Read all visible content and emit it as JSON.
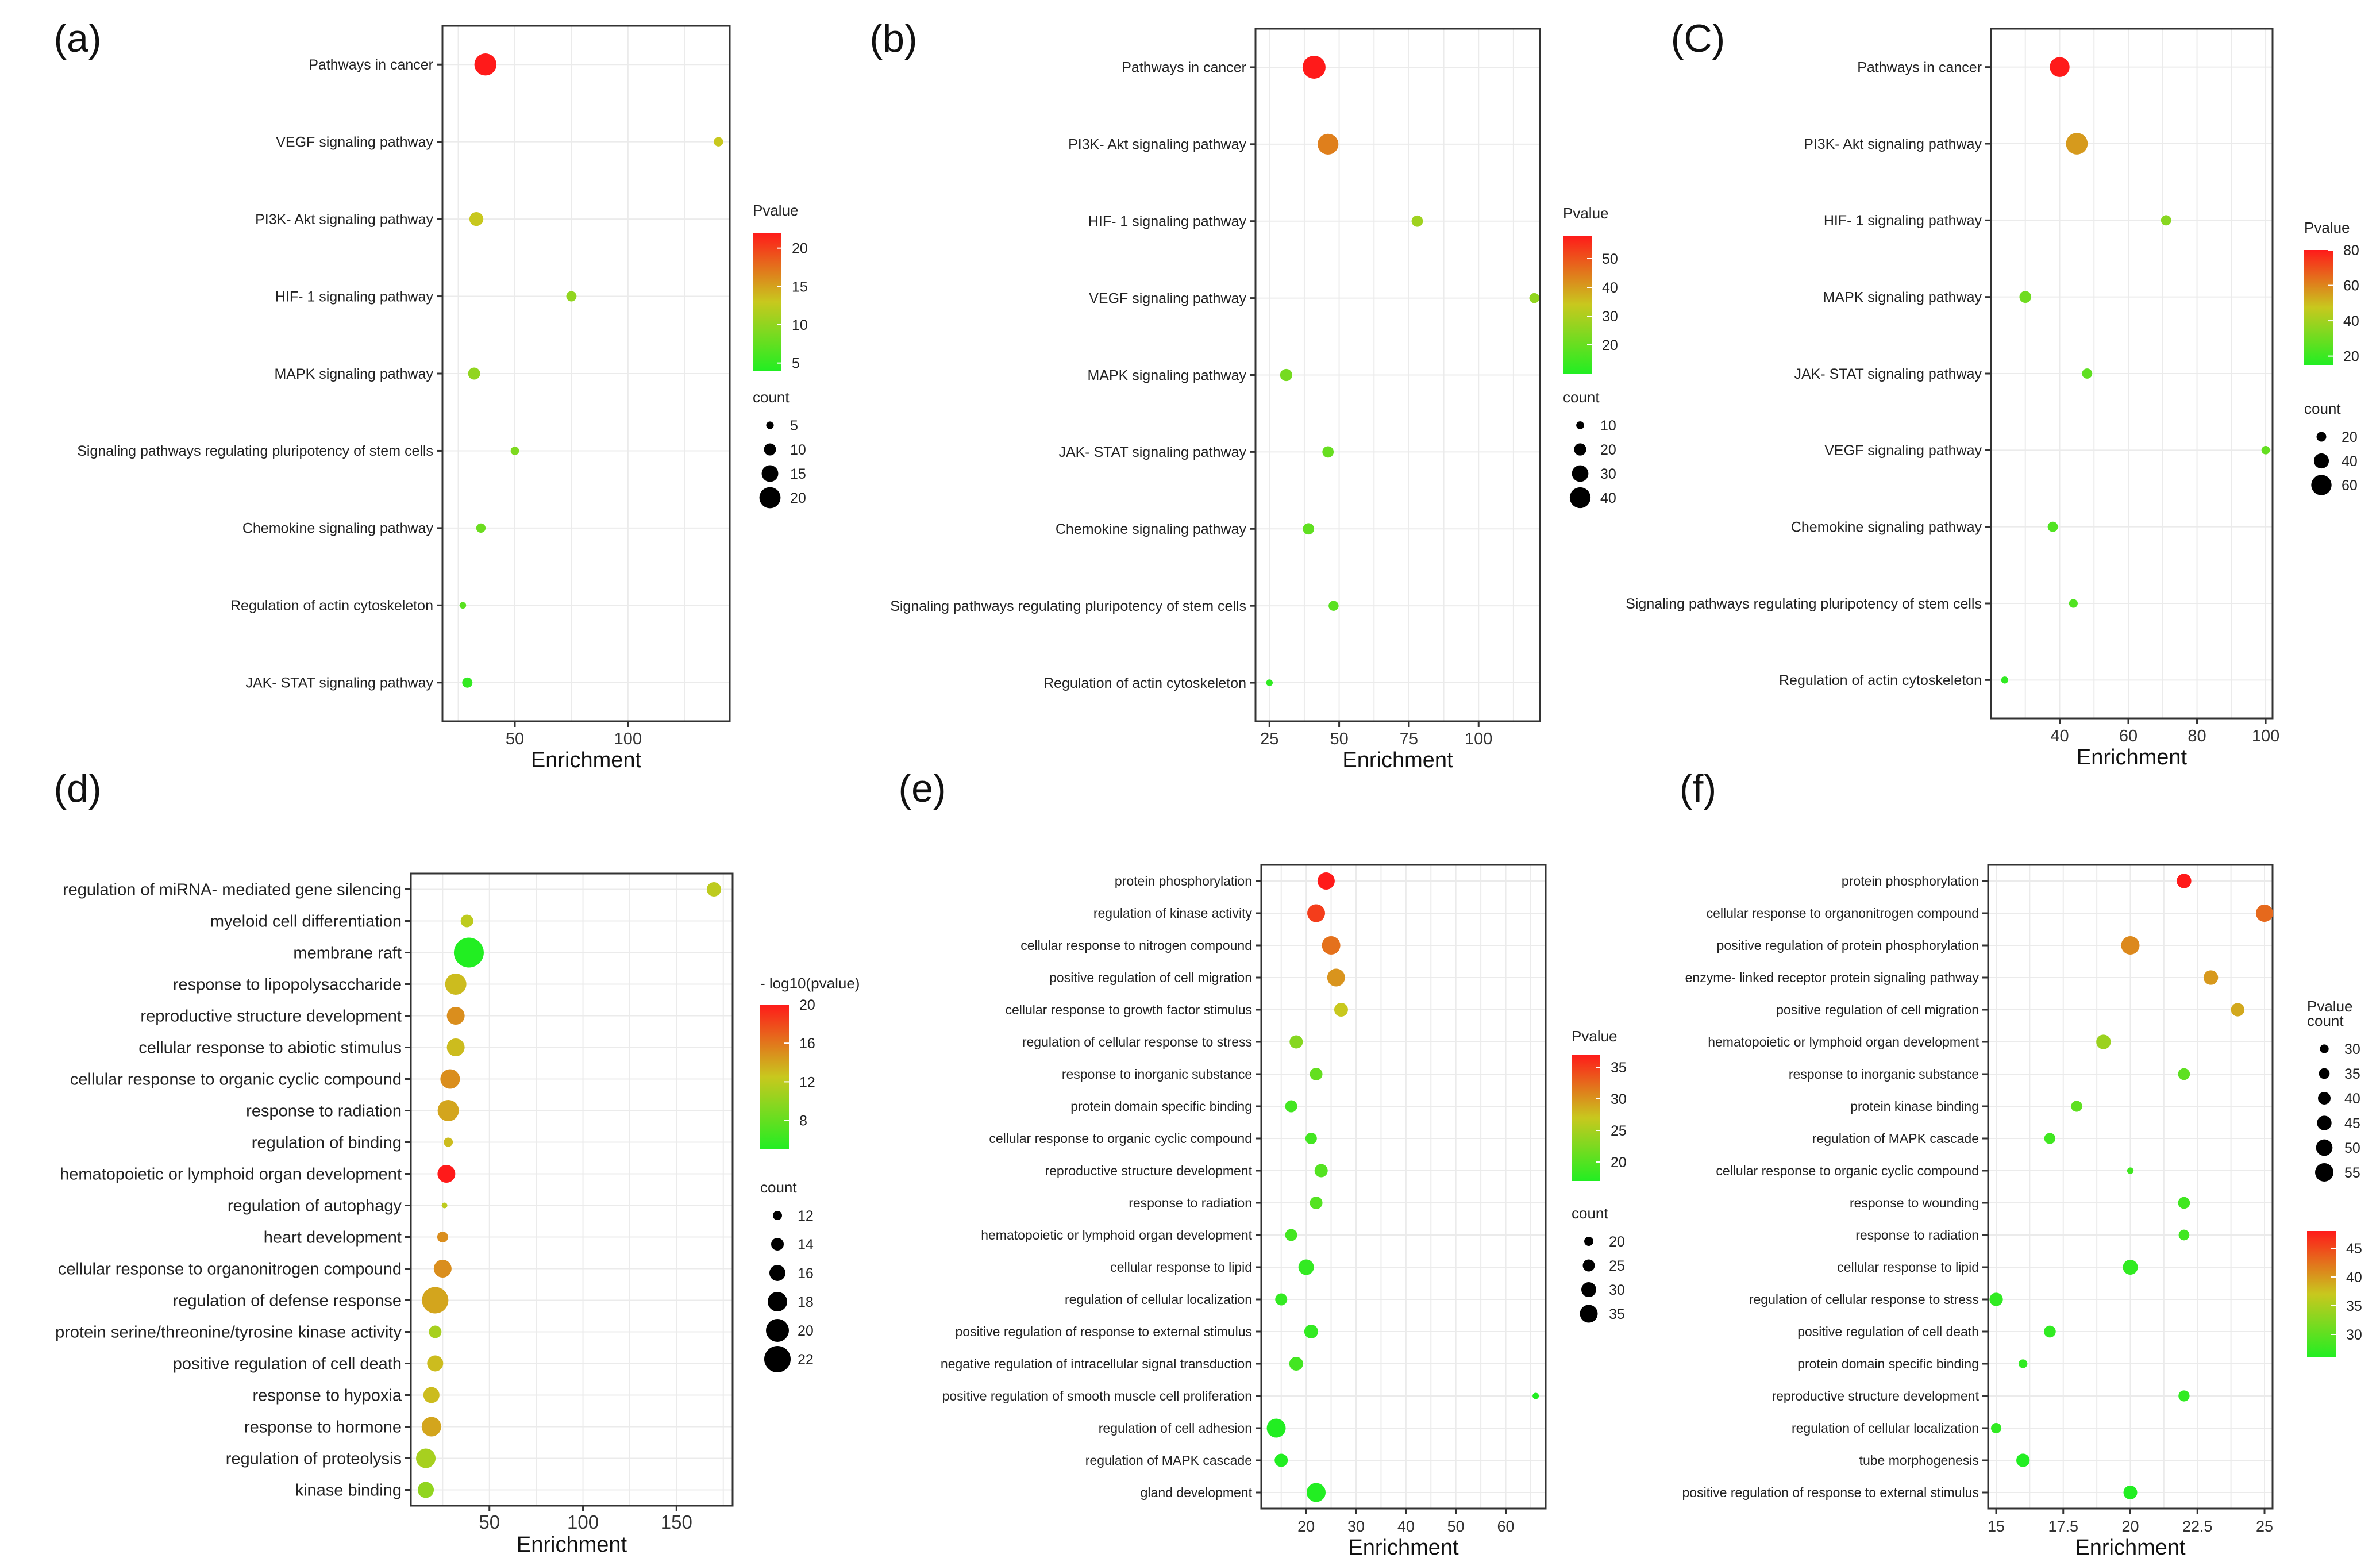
{
  "figure": {
    "color_low": "#22ee22",
    "color_mid": "#c8c81e",
    "color_high": "#ff1a1a",
    "count_label": "count"
  },
  "chart_data": [
    {
      "panel_label": "(a)",
      "type": "scatter",
      "xlabel": "Enrichment",
      "ylabel": "",
      "xlim": [
        18,
        145
      ],
      "xticks": [
        50,
        100
      ],
      "color_legend_title": "Pvalue",
      "color_range": [
        4,
        22
      ],
      "color_ticks": [
        5,
        10,
        15,
        20
      ],
      "size_range": [
        3,
        22
      ],
      "size_ticks": [
        5,
        10,
        15,
        20
      ],
      "points": [
        {
          "term": "Pathways in cancer",
          "x": 37,
          "count": 21,
          "pvalue": 22
        },
        {
          "term": "VEGF signaling pathway",
          "x": 140,
          "count": 7,
          "pvalue": 13
        },
        {
          "term": "PI3K- Akt signaling pathway",
          "x": 33,
          "count": 12,
          "pvalue": 13
        },
        {
          "term": "HIF- 1 signaling pathway",
          "x": 75,
          "count": 8,
          "pvalue": 10
        },
        {
          "term": "MAPK signaling pathway",
          "x": 32,
          "count": 10,
          "pvalue": 10
        },
        {
          "term": "Signaling pathways regulating pluripotency of stem cells",
          "x": 50,
          "count": 6,
          "pvalue": 9
        },
        {
          "term": "Chemokine signaling pathway",
          "x": 35,
          "count": 7,
          "pvalue": 8
        },
        {
          "term": "Regulation of actin cytoskeleton",
          "x": 27,
          "count": 4,
          "pvalue": 7
        },
        {
          "term": "JAK- STAT signaling pathway",
          "x": 29,
          "count": 8,
          "pvalue": 5
        }
      ]
    },
    {
      "panel_label": "(b)",
      "type": "scatter",
      "xlabel": "Enrichment",
      "ylabel": "",
      "xlim": [
        20,
        122
      ],
      "xticks": [
        25,
        50,
        75,
        100
      ],
      "color_legend_title": "Pvalue",
      "color_range": [
        10,
        58
      ],
      "color_ticks": [
        20,
        30,
        40,
        50
      ],
      "size_range": [
        5,
        45
      ],
      "size_ticks": [
        10,
        20,
        30,
        40
      ],
      "points": [
        {
          "term": "Pathways in cancer",
          "x": 41,
          "count": 45,
          "pvalue": 58
        },
        {
          "term": "PI3K- Akt signaling pathway",
          "x": 46,
          "count": 40,
          "pvalue": 44
        },
        {
          "term": "HIF- 1 signaling pathway",
          "x": 78,
          "count": 18,
          "pvalue": 28
        },
        {
          "term": "VEGF signaling pathway",
          "x": 120,
          "count": 15,
          "pvalue": 26
        },
        {
          "term": "MAPK signaling pathway",
          "x": 31,
          "count": 20,
          "pvalue": 22
        },
        {
          "term": "JAK- STAT signaling pathway",
          "x": 46,
          "count": 18,
          "pvalue": 20
        },
        {
          "term": "Chemokine signaling pathway",
          "x": 39,
          "count": 18,
          "pvalue": 19
        },
        {
          "term": "Signaling pathways regulating pluripotency of stem cells",
          "x": 48,
          "count": 15,
          "pvalue": 18
        },
        {
          "term": "Regulation of actin cytoskeleton",
          "x": 25,
          "count": 7,
          "pvalue": 12
        }
      ]
    },
    {
      "panel_label": "(C)",
      "type": "scatter",
      "xlabel": "Enrichment",
      "ylabel": "",
      "xlim": [
        20,
        102
      ],
      "xticks": [
        40,
        60,
        80,
        100
      ],
      "color_legend_title": "Pvalue",
      "color_range": [
        15,
        80
      ],
      "color_ticks": [
        20,
        40,
        60,
        80
      ],
      "size_range": [
        5,
        70
      ],
      "size_ticks": [
        20,
        40,
        60
      ],
      "points": [
        {
          "term": "Pathways in cancer",
          "x": 40,
          "count": 58,
          "pvalue": 80
        },
        {
          "term": "PI3K- Akt signaling pathway",
          "x": 45,
          "count": 65,
          "pvalue": 56
        },
        {
          "term": "HIF- 1 signaling pathway",
          "x": 71,
          "count": 22,
          "pvalue": 35
        },
        {
          "term": "MAPK signaling pathway",
          "x": 30,
          "count": 28,
          "pvalue": 30
        },
        {
          "term": "JAK- STAT signaling pathway",
          "x": 48,
          "count": 22,
          "pvalue": 27
        },
        {
          "term": "VEGF signaling pathway",
          "x": 100,
          "count": 15,
          "pvalue": 28
        },
        {
          "term": "Chemokine signaling pathway",
          "x": 38,
          "count": 22,
          "pvalue": 24
        },
        {
          "term": "Signaling pathways regulating pluripotency of stem cells",
          "x": 44,
          "count": 16,
          "pvalue": 24
        },
        {
          "term": "Regulation of actin cytoskeleton",
          "x": 24,
          "count": 10,
          "pvalue": 18
        }
      ]
    },
    {
      "panel_label": "(d)",
      "type": "scatter",
      "xlabel": "Enrichment",
      "ylabel": "",
      "xlim": [
        8,
        180
      ],
      "xticks": [
        50,
        100,
        150
      ],
      "color_legend_title": "- log10(pvalue)",
      "color_range": [
        5,
        20
      ],
      "color_ticks": [
        8,
        12,
        16,
        20
      ],
      "size_range": [
        10,
        24
      ],
      "size_ticks": [
        12,
        14,
        16,
        18,
        20,
        22
      ],
      "points": [
        {
          "term": "regulation of miRNA- mediated gene silencing",
          "x": 170,
          "count": 15,
          "pvalue": 12
        },
        {
          "term": "myeloid cell differentiation",
          "x": 38,
          "count": 14,
          "pvalue": 12
        },
        {
          "term": "membrane raft",
          "x": 39,
          "count": 24,
          "pvalue": 5
        },
        {
          "term": "response to lipopolysaccharide",
          "x": 32,
          "count": 19,
          "pvalue": 13
        },
        {
          "term": "reproductive structure development",
          "x": 32,
          "count": 17,
          "pvalue": 15
        },
        {
          "term": "cellular response to abiotic stimulus",
          "x": 32,
          "count": 17,
          "pvalue": 13
        },
        {
          "term": "cellular response to organic cyclic compound",
          "x": 29,
          "count": 18,
          "pvalue": 15
        },
        {
          "term": "response to radiation",
          "x": 28,
          "count": 19,
          "pvalue": 14
        },
        {
          "term": "regulation of binding",
          "x": 28,
          "count": 12,
          "pvalue": 13
        },
        {
          "term": "hematopoietic or lymphoid organ development",
          "x": 27,
          "count": 17,
          "pvalue": 20
        },
        {
          "term": "regulation of autophagy",
          "x": 26,
          "count": 10,
          "pvalue": 12
        },
        {
          "term": "heart development",
          "x": 25,
          "count": 13,
          "pvalue": 15
        },
        {
          "term": "cellular response to organonitrogen compound",
          "x": 25,
          "count": 17,
          "pvalue": 15
        },
        {
          "term": "regulation of defense response",
          "x": 21,
          "count": 22,
          "pvalue": 14
        },
        {
          "term": "protein serine/threonine/tyrosine kinase activity",
          "x": 21,
          "count": 14,
          "pvalue": 11
        },
        {
          "term": "positive regulation of cell death",
          "x": 21,
          "count": 16,
          "pvalue": 13
        },
        {
          "term": "response to hypoxia",
          "x": 19,
          "count": 16,
          "pvalue": 13
        },
        {
          "term": "response to hormone",
          "x": 19,
          "count": 18,
          "pvalue": 14
        },
        {
          "term": "regulation of proteolysis",
          "x": 16,
          "count": 18,
          "pvalue": 11
        },
        {
          "term": "kinase binding",
          "x": 16,
          "count": 16,
          "pvalue": 10
        }
      ]
    },
    {
      "panel_label": "(e)",
      "type": "scatter",
      "xlabel": "Enrichment",
      "ylabel": "",
      "xlim": [
        11,
        68
      ],
      "xticks": [
        20,
        30,
        40,
        50,
        60
      ],
      "color_legend_title": "Pvalue",
      "color_range": [
        17,
        37
      ],
      "color_ticks": [
        20,
        25,
        30,
        35
      ],
      "size_range": [
        14,
        38
      ],
      "size_ticks": [
        20,
        25,
        30,
        35
      ],
      "points": [
        {
          "term": "protein phosphorylation",
          "x": 24,
          "count": 34,
          "pvalue": 37
        },
        {
          "term": "regulation of kinase activity",
          "x": 22,
          "count": 35,
          "pvalue": 35
        },
        {
          "term": "cellular response to nitrogen compound",
          "x": 25,
          "count": 36,
          "pvalue": 32
        },
        {
          "term": "positive regulation of cell migration",
          "x": 26,
          "count": 35,
          "pvalue": 30
        },
        {
          "term": "cellular response to growth factor stimulus",
          "x": 27,
          "count": 28,
          "pvalue": 27
        },
        {
          "term": "regulation of cellular response to stress",
          "x": 18,
          "count": 27,
          "pvalue": 23
        },
        {
          "term": "response to inorganic substance",
          "x": 22,
          "count": 26,
          "pvalue": 21
        },
        {
          "term": "protein domain specific binding",
          "x": 17,
          "count": 25,
          "pvalue": 19
        },
        {
          "term": "cellular response to organic cyclic compound",
          "x": 21,
          "count": 24,
          "pvalue": 19
        },
        {
          "term": "reproductive structure development",
          "x": 23,
          "count": 27,
          "pvalue": 20
        },
        {
          "term": "response to radiation",
          "x": 22,
          "count": 26,
          "pvalue": 20
        },
        {
          "term": "hematopoietic or lymphoid organ development",
          "x": 17,
          "count": 25,
          "pvalue": 19
        },
        {
          "term": "cellular response to lipid",
          "x": 20,
          "count": 31,
          "pvalue": 18
        },
        {
          "term": "regulation of cellular localization",
          "x": 15,
          "count": 25,
          "pvalue": 18
        },
        {
          "term": "positive regulation of response to external stimulus",
          "x": 21,
          "count": 28,
          "pvalue": 18
        },
        {
          "term": "negative regulation of intracellular signal transduction",
          "x": 18,
          "count": 28,
          "pvalue": 19
        },
        {
          "term": "positive regulation of smooth muscle cell proliferation",
          "x": 66,
          "count": 15,
          "pvalue": 17
        },
        {
          "term": "regulation of cell adhesion",
          "x": 14,
          "count": 37,
          "pvalue": 17
        },
        {
          "term": "regulation of MAPK cascade",
          "x": 15,
          "count": 27,
          "pvalue": 17
        },
        {
          "term": "gland development",
          "x": 22,
          "count": 37,
          "pvalue": 17
        }
      ]
    },
    {
      "panel_label": "(f)",
      "type": "scatter",
      "xlabel": "Enrichment",
      "ylabel": "",
      "xlim": [
        14.7,
        25.3
      ],
      "xticks": [
        15.0,
        17.5,
        20.0,
        22.5,
        25.0
      ],
      "color_legend_title": "Pvalue",
      "color_range": [
        26,
        48
      ],
      "color_ticks": [
        30,
        35,
        40,
        45
      ],
      "size_range": [
        22,
        58
      ],
      "size_ticks": [
        30,
        35,
        40,
        45,
        50,
        55
      ],
      "points": [
        {
          "term": "protein phosphorylation",
          "x": 22,
          "count": 45,
          "pvalue": 48
        },
        {
          "term": "cellular response to organonitrogen compound",
          "x": 25,
          "count": 52,
          "pvalue": 43
        },
        {
          "term": "positive regulation of protein phosphorylation",
          "x": 20,
          "count": 55,
          "pvalue": 41
        },
        {
          "term": "enzyme- linked receptor protein signaling pathway",
          "x": 23,
          "count": 45,
          "pvalue": 40
        },
        {
          "term": "positive regulation of cell migration",
          "x": 24,
          "count": 42,
          "pvalue": 39
        },
        {
          "term": "hematopoietic or lymphoid organ development",
          "x": 19,
          "count": 45,
          "pvalue": 34
        },
        {
          "term": "response to inorganic substance",
          "x": 22,
          "count": 38,
          "pvalue": 30
        },
        {
          "term": "protein kinase binding",
          "x": 18,
          "count": 36,
          "pvalue": 30
        },
        {
          "term": "regulation of MAPK cascade",
          "x": 17,
          "count": 36,
          "pvalue": 28
        },
        {
          "term": "cellular response to organic cyclic compound",
          "x": 20,
          "count": 24,
          "pvalue": 28
        },
        {
          "term": "response to wounding",
          "x": 22,
          "count": 38,
          "pvalue": 28
        },
        {
          "term": "response to radiation",
          "x": 22,
          "count": 35,
          "pvalue": 28
        },
        {
          "term": "cellular response to lipid",
          "x": 20,
          "count": 46,
          "pvalue": 27
        },
        {
          "term": "regulation of cellular response to stress",
          "x": 15,
          "count": 42,
          "pvalue": 27
        },
        {
          "term": "positive regulation of cell death",
          "x": 17,
          "count": 38,
          "pvalue": 27
        },
        {
          "term": "protein domain specific binding",
          "x": 16,
          "count": 30,
          "pvalue": 27
        },
        {
          "term": "reproductive structure development",
          "x": 22,
          "count": 36,
          "pvalue": 27
        },
        {
          "term": "regulation of cellular localization",
          "x": 15,
          "count": 34,
          "pvalue": 27
        },
        {
          "term": "tube morphogenesis",
          "x": 16,
          "count": 42,
          "pvalue": 26
        },
        {
          "term": "positive regulation of response to external stimulus",
          "x": 20,
          "count": 43,
          "pvalue": 26
        }
      ]
    }
  ]
}
